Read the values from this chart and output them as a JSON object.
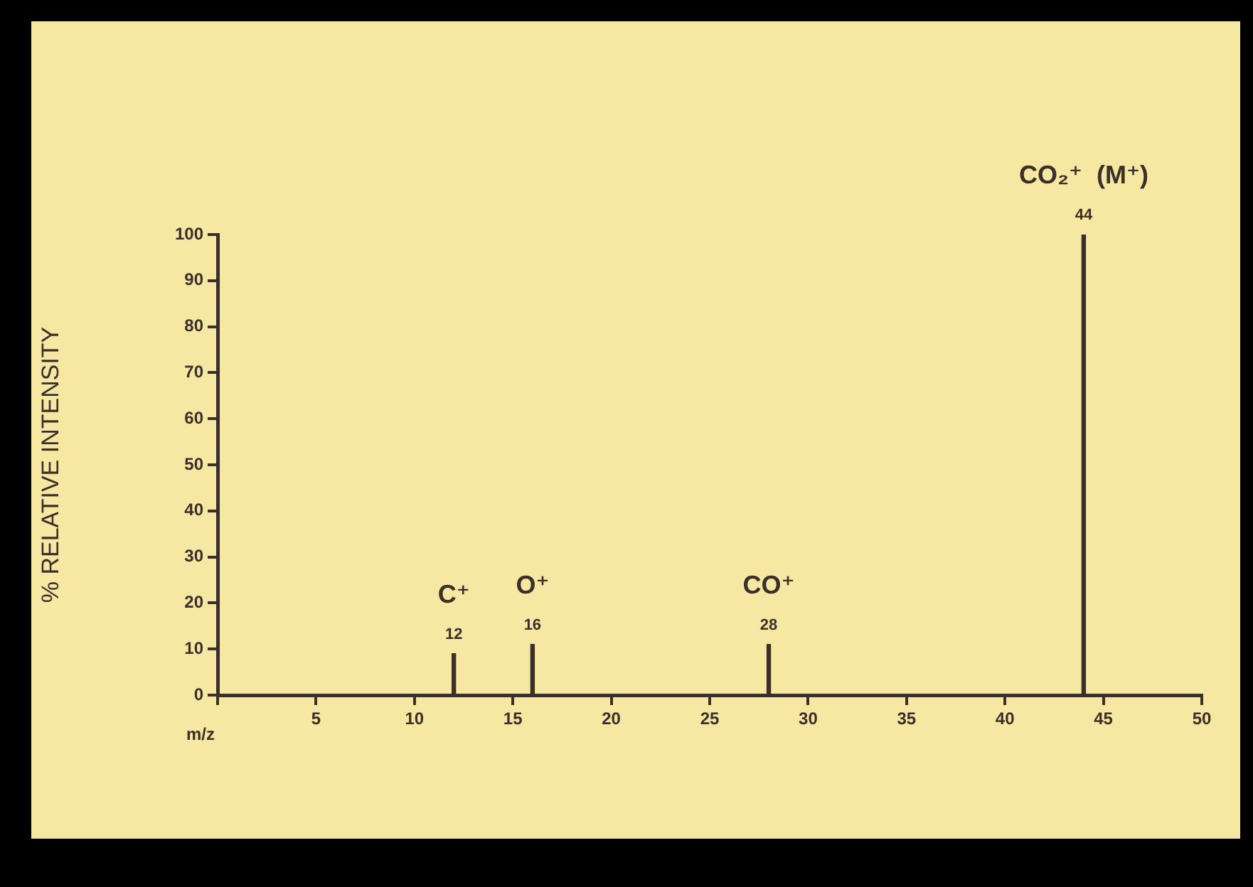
{
  "chart_data": {
    "type": "bar",
    "xlabel": "m/z",
    "ylabel": "% RELATIVE INTENSITY",
    "x": [
      12,
      16,
      28,
      44
    ],
    "values": [
      9,
      11,
      11,
      100
    ],
    "color": "#3a3028",
    "annotations": [
      {
        "text": "12",
        "x": 12,
        "y": 9
      },
      {
        "text": "16",
        "x": 16,
        "y": 11
      },
      {
        "text": "28",
        "x": 28,
        "y": 11
      },
      {
        "text": "44",
        "x": 44,
        "y": 100
      },
      {
        "text": "C⁺",
        "x": 12,
        "y": 9
      },
      {
        "text": "O⁺",
        "x": 16,
        "y": 11
      },
      {
        "text": "CO⁺",
        "x": 28,
        "y": 11
      },
      {
        "text": "CO₂⁺  (M⁺)",
        "x": 44,
        "y": 100
      }
    ],
    "xlim": [
      0,
      50
    ],
    "xticks": [
      {
        "value": 0,
        "label": null
      },
      5,
      10,
      15,
      20,
      25,
      30,
      35,
      40,
      45,
      50
    ],
    "ylim": [
      0,
      100
    ],
    "yticks": [
      0,
      10,
      20,
      30,
      40,
      50,
      60,
      70,
      80,
      90,
      100
    ],
    "grid": false,
    "legend": false
  }
}
